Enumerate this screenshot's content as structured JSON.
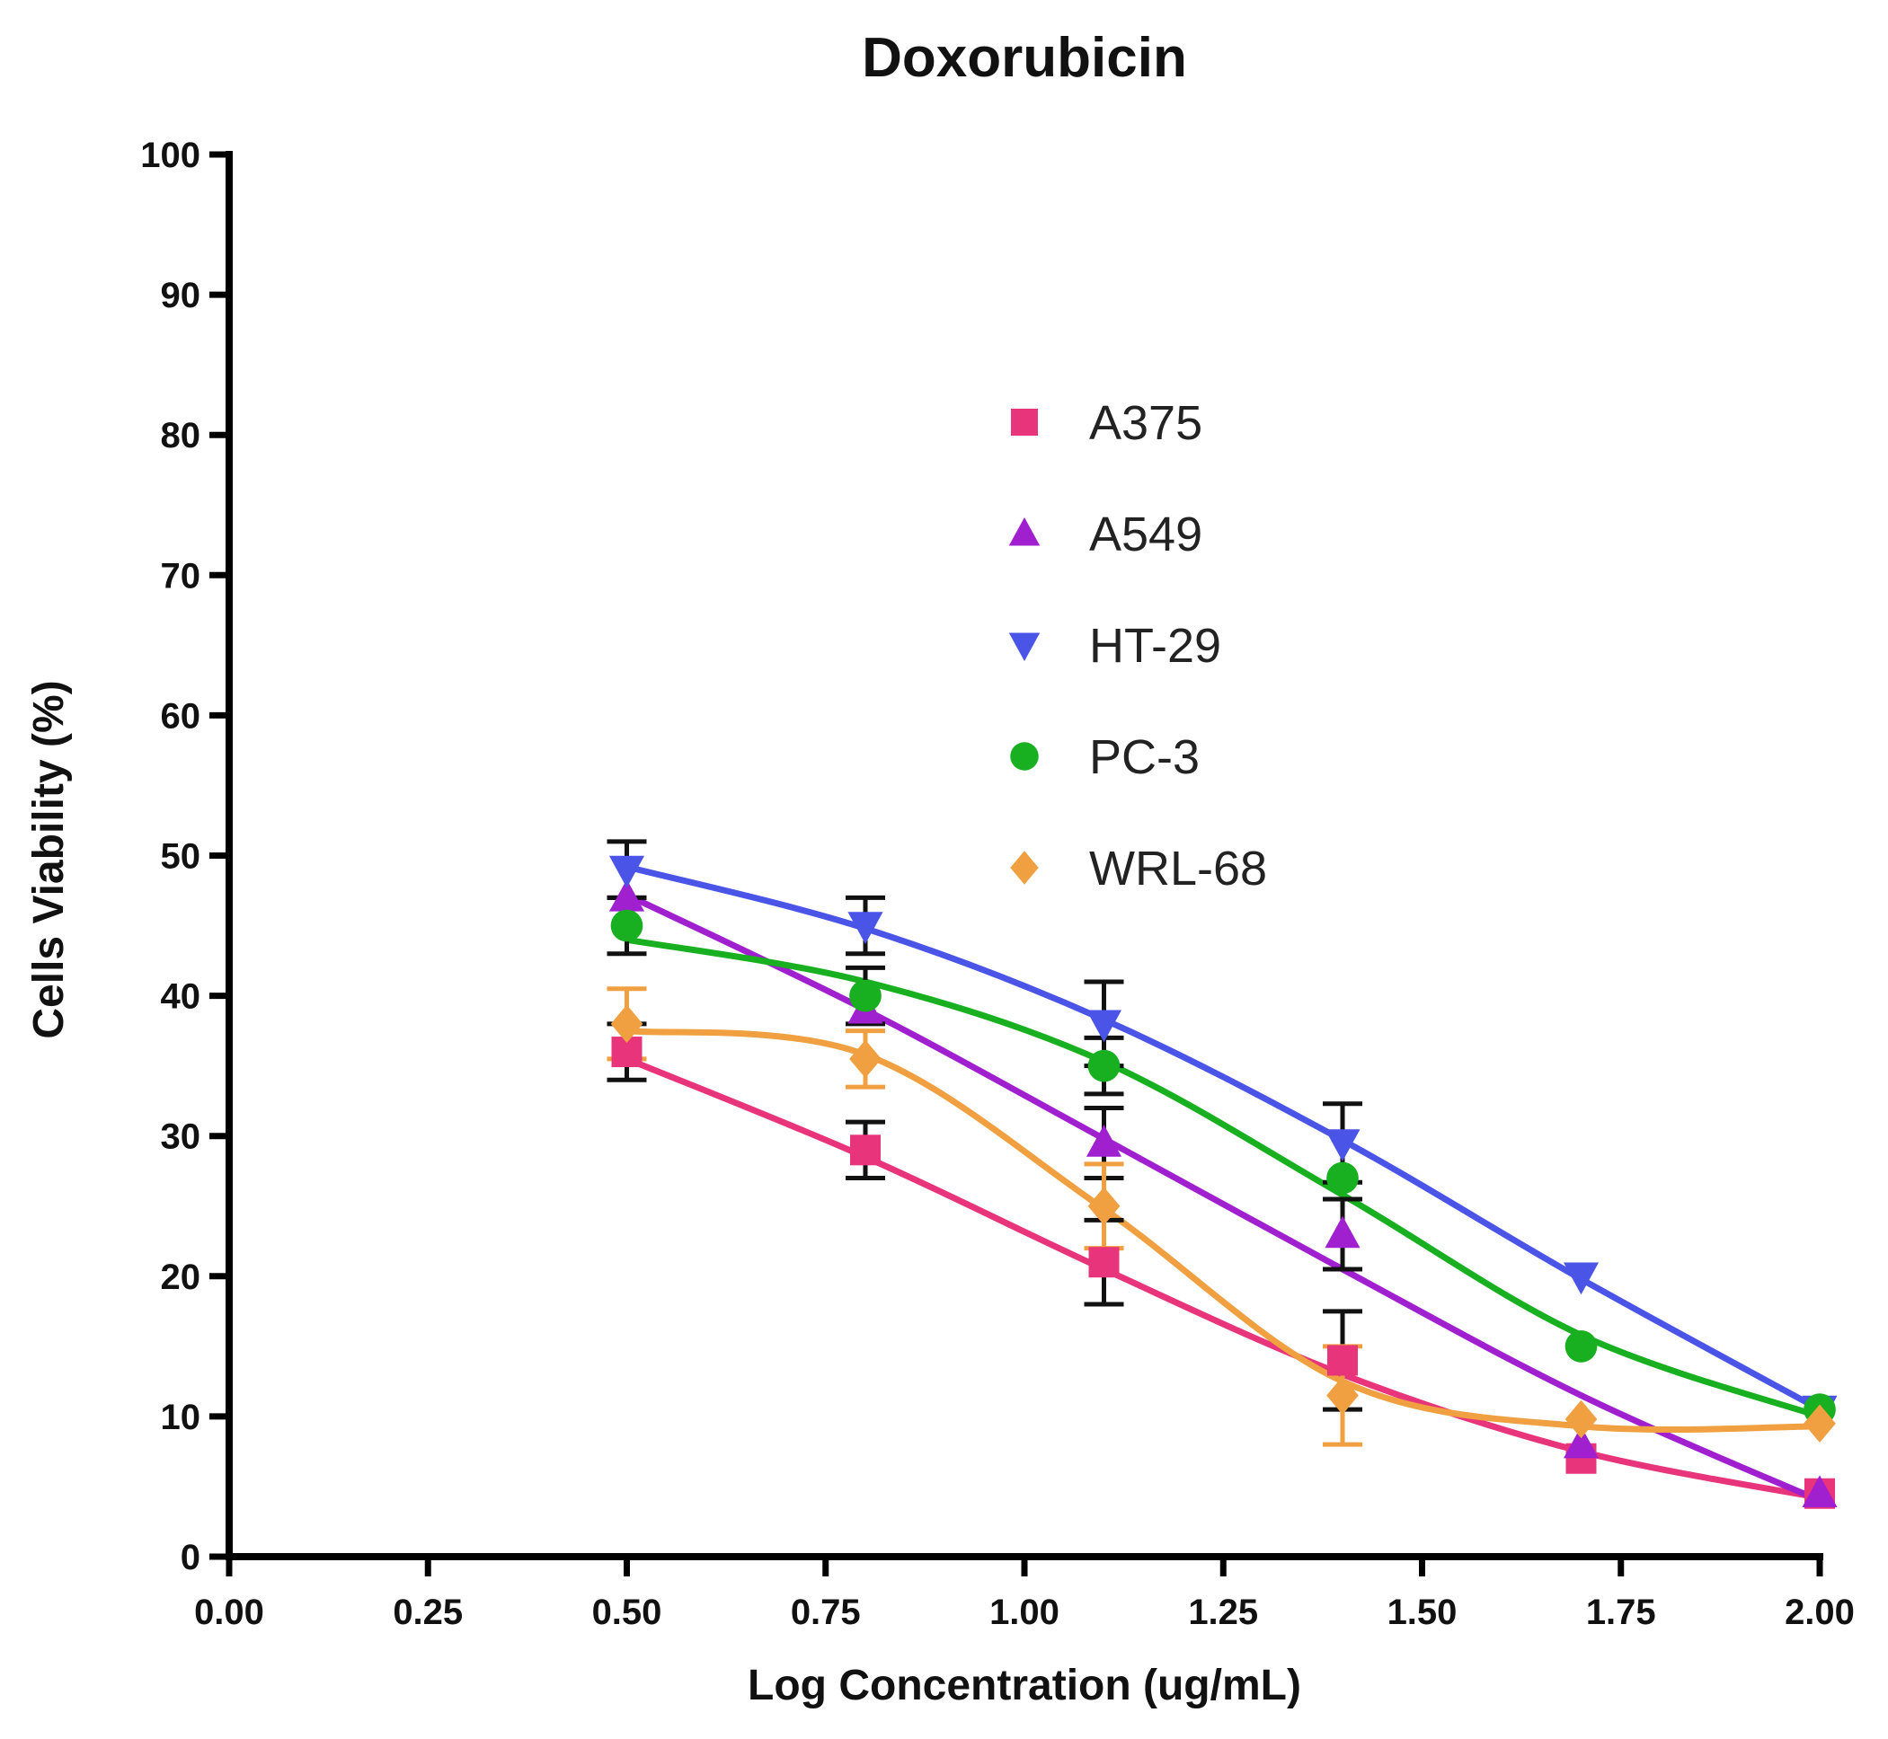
{
  "chart_data": {
    "type": "line",
    "title": "Doxorubicin",
    "xlabel": "Log Concentration (ug/mL)",
    "ylabel": "Cells Viability (%)",
    "xlim": [
      0.0,
      2.0
    ],
    "ylim": [
      0,
      100
    ],
    "x_ticks": [
      "0.00",
      "0.25",
      "0.50",
      "0.75",
      "1.00",
      "1.25",
      "1.50",
      "1.75",
      "2.00"
    ],
    "x_tick_values": [
      0,
      0.25,
      0.5,
      0.75,
      1.0,
      1.25,
      1.5,
      1.75,
      2.0
    ],
    "y_ticks": [
      "0",
      "10",
      "20",
      "30",
      "40",
      "50",
      "60",
      "70",
      "80",
      "90",
      "100"
    ],
    "y_tick_values": [
      0,
      10,
      20,
      30,
      40,
      50,
      60,
      70,
      80,
      90,
      100
    ],
    "legend_position": "center",
    "grid": false,
    "x": [
      0.5,
      0.8,
      1.1,
      1.4,
      1.7,
      2.0
    ],
    "series": [
      {
        "name": "A375",
        "color": "#e8347a",
        "marker": "square",
        "values": [
          36,
          29,
          21,
          14,
          7,
          4.5
        ],
        "errors": [
          2,
          2,
          3,
          3.5,
          0,
          0
        ],
        "fit": [
          35.5,
          28.5,
          20.5,
          13.0,
          7.5,
          4.2
        ]
      },
      {
        "name": "A549",
        "color": "#a020d0",
        "marker": "triangle-up",
        "values": [
          47,
          39,
          29.5,
          23,
          8,
          4.5
        ],
        "errors": [
          0,
          0,
          2.5,
          2.5,
          0,
          0
        ],
        "fit": [
          47.2,
          39.0,
          29.8,
          20.5,
          11.5,
          4.0
        ]
      },
      {
        "name": "HT-29",
        "color": "#4a55e8",
        "marker": "triangle-down",
        "values": [
          49,
          45,
          38,
          29.5,
          20,
          10.5
        ],
        "errors": [
          2,
          2,
          3,
          2.8,
          0,
          0
        ],
        "fit": [
          49.2,
          44.8,
          38.3,
          29.7,
          19.8,
          10.5
        ]
      },
      {
        "name": "PC-3",
        "color": "#18b020",
        "marker": "circle",
        "values": [
          45,
          40,
          35,
          27,
          15,
          10.5
        ],
        "errors": [
          2,
          2,
          2,
          0,
          0,
          0
        ],
        "fit": [
          44.0,
          41.0,
          35.3,
          25.8,
          15.8,
          10.0
        ]
      },
      {
        "name": "WRL-68",
        "color": "#f0a040",
        "marker": "diamond",
        "values": [
          38,
          35.5,
          25,
          11.5,
          9.8,
          9.5
        ],
        "errors": [
          2.5,
          2,
          3,
          3.5,
          0,
          0
        ],
        "fit": [
          37.5,
          35.8,
          24.8,
          12.5,
          9.3,
          9.3
        ]
      }
    ]
  }
}
